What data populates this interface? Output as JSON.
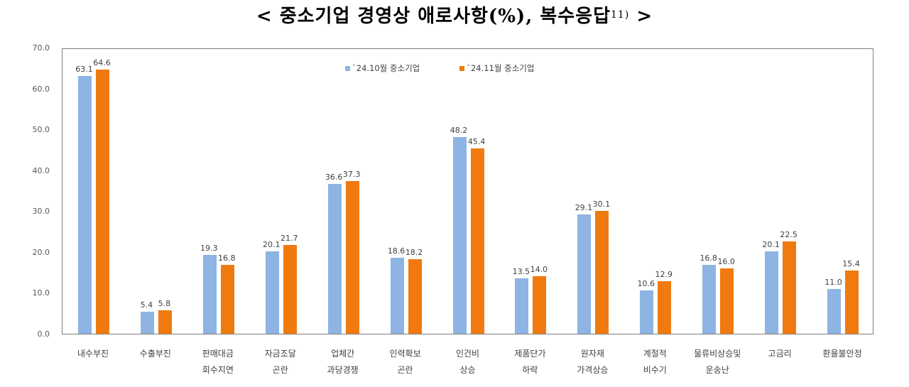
{
  "title": {
    "text": "< 중소기업 경영상 애로사항(%), 복수응답",
    "footnote": "11)",
    "suffix": " >"
  },
  "legend": [
    {
      "label": "`24.10월 중소기업",
      "color": "#8DB4E2"
    },
    {
      "label": "`24.11월 중소기업",
      "color": "#F07A0F"
    }
  ],
  "y_ticks": [
    "0.0",
    "10.0",
    "20.0",
    "30.0",
    "40.0",
    "50.0",
    "60.0",
    "70.0"
  ],
  "chart_data": {
    "type": "bar",
    "title": "< 중소기업 경영상 애로사항(%), 복수응답11) >",
    "xlabel": "",
    "ylabel": "",
    "ylim": [
      0,
      70
    ],
    "grid": false,
    "legend_position": "top",
    "categories": [
      [
        "내수부진"
      ],
      [
        "수출부진"
      ],
      [
        "판매대금",
        "회수지연"
      ],
      [
        "자금조달",
        "곤란"
      ],
      [
        "업체간",
        "과당경쟁"
      ],
      [
        "인력확보",
        "곤란"
      ],
      [
        "인건비",
        "상승"
      ],
      [
        "제품단가",
        "하락"
      ],
      [
        "원자재",
        "가격상승"
      ],
      [
        "계절적",
        "비수기"
      ],
      [
        "물류비상승및",
        "운송난"
      ],
      [
        "고금리"
      ],
      [
        "환율불안정"
      ]
    ],
    "series": [
      {
        "name": "`24.10월 중소기업",
        "color": "#8DB4E2",
        "values": [
          63.1,
          5.4,
          19.3,
          20.1,
          36.6,
          18.6,
          48.2,
          13.5,
          29.1,
          10.6,
          16.8,
          20.1,
          11.0
        ]
      },
      {
        "name": "`24.11월 중소기업",
        "color": "#F07A0F",
        "values": [
          64.6,
          5.8,
          16.8,
          21.7,
          37.3,
          18.2,
          45.4,
          14.0,
          30.1,
          12.9,
          16.0,
          22.5,
          15.4
        ]
      }
    ]
  }
}
